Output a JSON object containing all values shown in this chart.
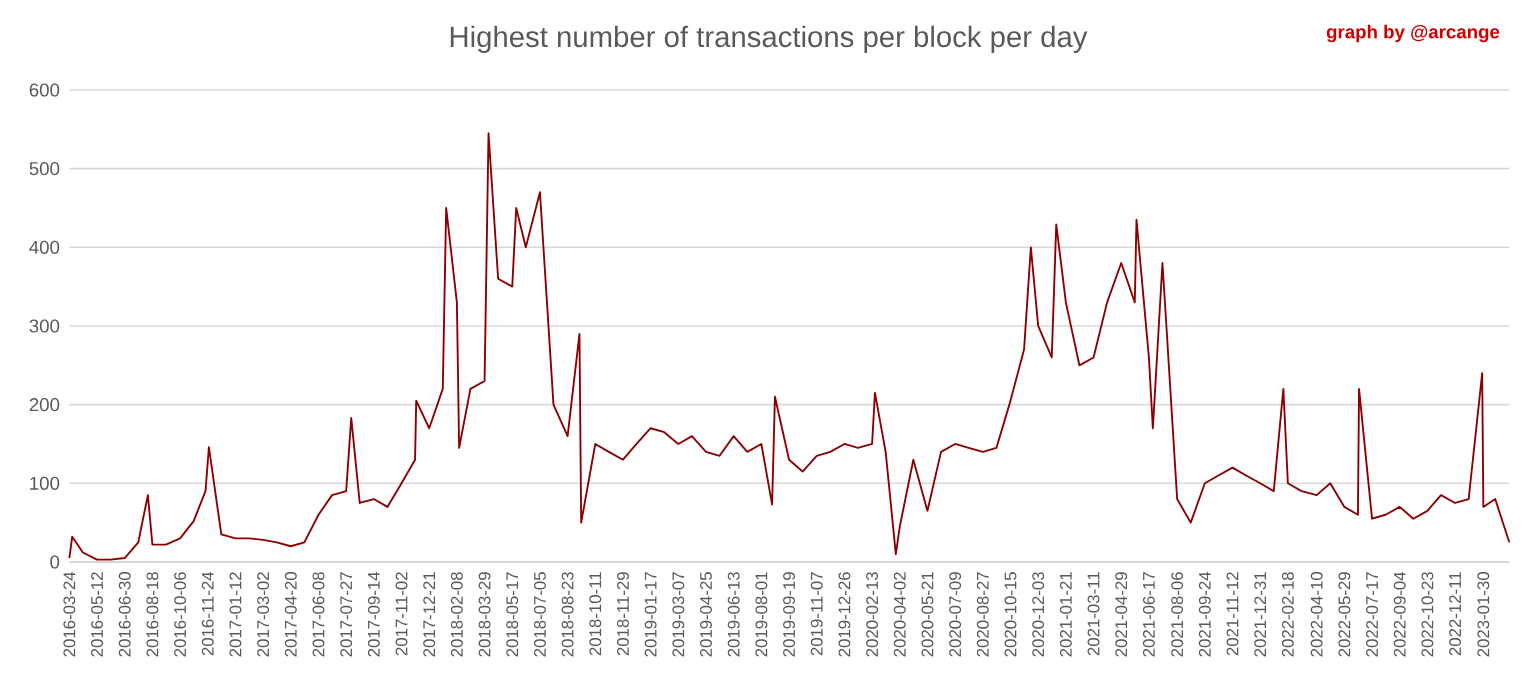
{
  "chart_data": {
    "type": "line",
    "title": "Highest number of transactions per block per day",
    "annotations": [
      "graph by @arcange"
    ],
    "x": [
      "2016-03-24",
      "2016-03-29",
      "2016-04-17",
      "2016-05-12",
      "2016-06-05",
      "2016-06-30",
      "2016-07-24",
      "2016-08-10",
      "2016-08-18",
      "2016-09-11",
      "2016-10-06",
      "2016-10-30",
      "2016-11-20",
      "2016-11-26",
      "2016-12-18",
      "2017-01-12",
      "2017-02-05",
      "2017-03-02",
      "2017-03-26",
      "2017-04-20",
      "2017-05-14",
      "2017-06-08",
      "2017-07-02",
      "2017-07-27",
      "2017-08-05",
      "2017-08-20",
      "2017-09-14",
      "2017-10-08",
      "2017-11-02",
      "2017-11-26",
      "2017-11-28",
      "2017-12-21",
      "2018-01-14",
      "2018-01-20",
      "2018-02-08",
      "2018-02-12",
      "2018-03-04",
      "2018-03-29",
      "2018-04-05",
      "2018-04-22",
      "2018-05-17",
      "2018-05-24",
      "2018-06-10",
      "2018-07-05",
      "2018-07-29",
      "2018-08-23",
      "2018-09-13",
      "2018-09-16",
      "2018-10-11",
      "2018-11-04",
      "2018-11-29",
      "2018-12-23",
      "2019-01-17",
      "2019-02-10",
      "2019-03-07",
      "2019-03-31",
      "2019-04-25",
      "2019-05-19",
      "2019-06-13",
      "2019-07-07",
      "2019-08-01",
      "2019-08-20",
      "2019-08-25",
      "2019-09-19",
      "2019-10-13",
      "2019-11-07",
      "2019-12-01",
      "2019-12-26",
      "2020-01-19",
      "2020-02-13",
      "2020-02-18",
      "2020-03-08",
      "2020-03-26",
      "2020-04-02",
      "2020-04-26",
      "2020-05-21",
      "2020-06-14",
      "2020-07-09",
      "2020-08-02",
      "2020-08-27",
      "2020-09-20",
      "2020-10-13",
      "2020-11-08",
      "2020-11-20",
      "2020-12-03",
      "2020-12-27",
      "2021-01-04",
      "2021-01-21",
      "2021-02-14",
      "2021-03-11",
      "2021-04-04",
      "2021-04-29",
      "2021-05-23",
      "2021-05-26",
      "2021-06-17",
      "2021-06-24",
      "2021-07-11",
      "2021-08-06",
      "2021-08-30",
      "2021-09-24",
      "2021-10-18",
      "2021-11-12",
      "2021-12-06",
      "2021-12-31",
      "2022-01-24",
      "2022-02-10",
      "2022-02-18",
      "2022-03-14",
      "2022-04-10",
      "2022-05-04",
      "2022-05-29",
      "2022-06-22",
      "2022-06-24",
      "2022-07-17",
      "2022-08-10",
      "2022-09-04",
      "2022-09-28",
      "2022-10-23",
      "2022-11-16",
      "2022-12-11",
      "2023-01-04",
      "2023-01-28",
      "2023-01-30",
      "2023-02-20",
      "2023-03-17"
    ],
    "series": [
      {
        "color": "#8b0000",
        "values": [
          5,
          32,
          12,
          3,
          3,
          5,
          25,
          85,
          22,
          22,
          30,
          52,
          90,
          146,
          35,
          30,
          30,
          28,
          25,
          20,
          25,
          60,
          85,
          90,
          183,
          75,
          80,
          70,
          100,
          130,
          205,
          170,
          220,
          450,
          330,
          145,
          220,
          230,
          545,
          360,
          350,
          450,
          400,
          470,
          200,
          160,
          290,
          50,
          150,
          140,
          130,
          150,
          170,
          165,
          150,
          160,
          140,
          135,
          160,
          140,
          150,
          73,
          210,
          130,
          115,
          135,
          140,
          150,
          145,
          150,
          215,
          140,
          10,
          45,
          130,
          65,
          140,
          150,
          145,
          140,
          145,
          200,
          270,
          400,
          300,
          260,
          429,
          330,
          250,
          260,
          330,
          380,
          330,
          435,
          260,
          170,
          380,
          80,
          50,
          100,
          110,
          120,
          110,
          100,
          90,
          220,
          100,
          90,
          85,
          100,
          70,
          60,
          220,
          55,
          60,
          70,
          55,
          65,
          85,
          75,
          80,
          240,
          70,
          80,
          25
        ]
      }
    ],
    "xlim": [
      "2016-03-24",
      "2023-03-17"
    ],
    "xticks": [
      "2016-03-24",
      "2016-05-12",
      "2016-06-30",
      "2016-08-18",
      "2016-10-06",
      "2016-11-24",
      "2017-01-12",
      "2017-03-02",
      "2017-04-20",
      "2017-06-08",
      "2017-07-27",
      "2017-09-14",
      "2017-11-02",
      "2017-12-21",
      "2018-02-08",
      "2018-03-29",
      "2018-05-17",
      "2018-07-05",
      "2018-08-23",
      "2018-10-11",
      "2018-11-29",
      "2019-01-17",
      "2019-03-07",
      "2019-04-25",
      "2019-06-13",
      "2019-08-01",
      "2019-09-19",
      "2019-11-07",
      "2019-12-26",
      "2020-02-13",
      "2020-04-02",
      "2020-05-21",
      "2020-07-09",
      "2020-08-27",
      "2020-10-15",
      "2020-12-03",
      "2021-01-21",
      "2021-03-11",
      "2021-04-29",
      "2021-06-17",
      "2021-08-06",
      "2021-09-24",
      "2021-11-12",
      "2021-12-31",
      "2022-02-18",
      "2022-04-10",
      "2022-05-29",
      "2022-07-17",
      "2022-09-04",
      "2022-10-23",
      "2022-12-11",
      "2023-01-30"
    ],
    "ylim": [
      0,
      600
    ],
    "yticks": [
      0,
      100,
      200,
      300,
      400,
      500,
      600
    ],
    "grid": "y",
    "legend": false,
    "marker": "none",
    "line_style": "solid"
  }
}
